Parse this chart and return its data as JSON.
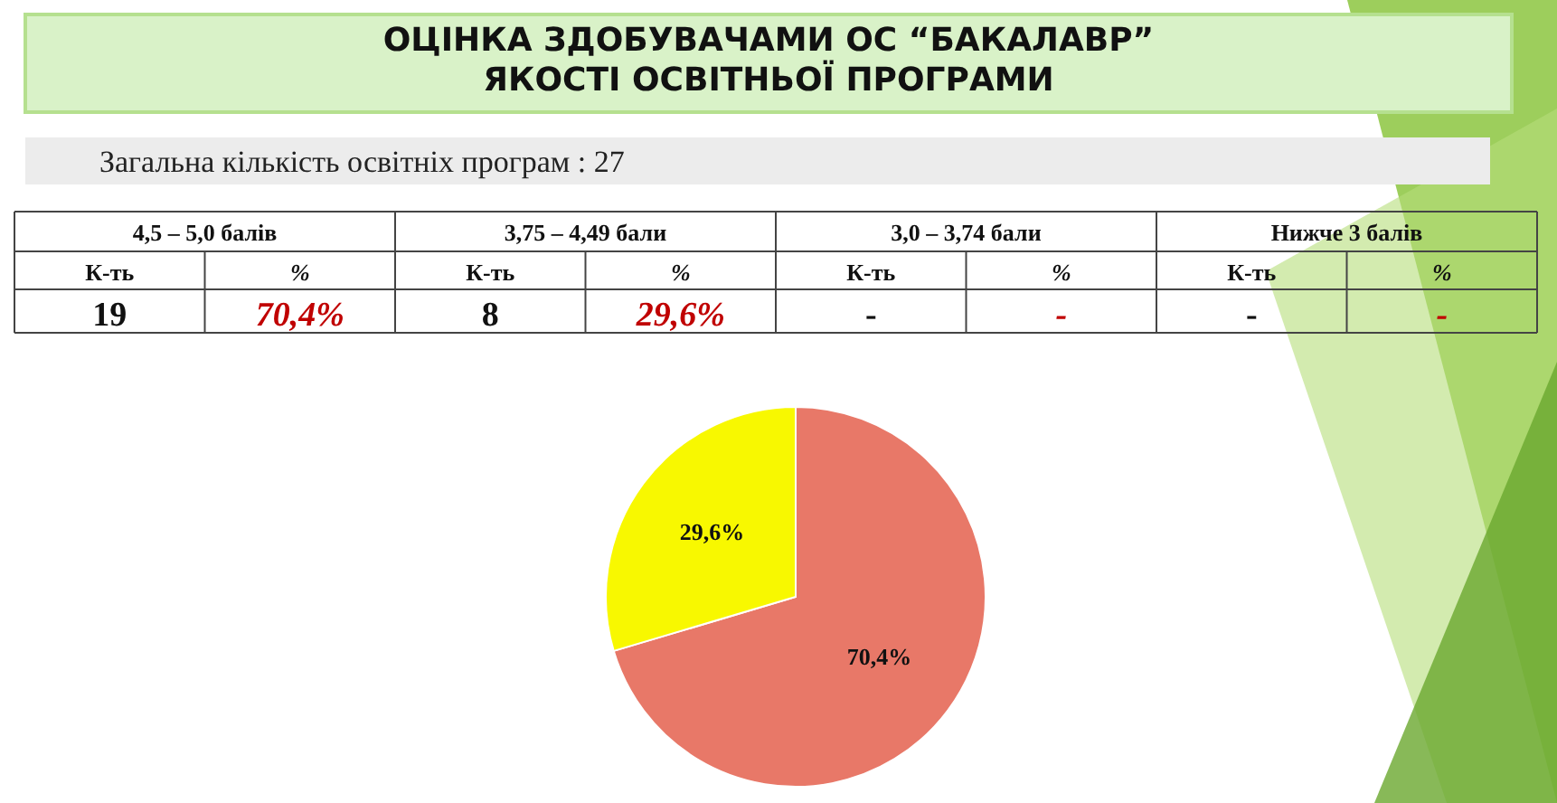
{
  "chart_data": [
    {
      "type": "other",
      "title": "ОЦІНКА ЗДОБУВАЧАМИ  ОС  “БАКАЛАВР”\nЯКОСТІ ОСВІТНЬОЇ ПРОГРАМИ",
      "subtitle": "Загальна кількість освітніх програм : 27",
      "annotations": [
        "4,5 – 5,0 балів",
        "3,75 – 4,49 бали",
        "3,0 – 3,74 бали",
        "Нижче 3 балів",
        "К-ть",
        "%",
        "К-ть",
        "%",
        "К-ть",
        "%",
        "К-ть",
        "%",
        "19",
        "70,4%",
        "8",
        "29,6%",
        "-",
        "-",
        "-",
        "-"
      ]
    },
    {
      "type": "pie",
      "categories": [
        null,
        null
      ],
      "values": [
        70.4,
        29.6
      ],
      "colors": [
        "#e87868",
        "#f8f800"
      ],
      "value_labels": [
        "70,4%",
        "29,6%"
      ]
    }
  ]
}
